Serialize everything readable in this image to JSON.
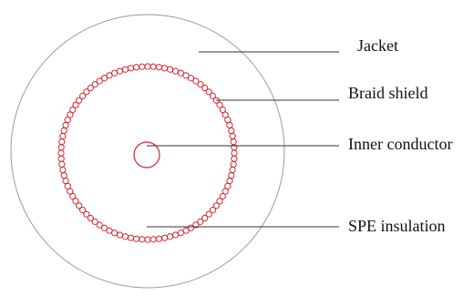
{
  "diagram": {
    "labels": {
      "jacket": "Jacket",
      "braid_shield": "Braid shield",
      "inner_conductor": "Inner conductor",
      "spe_insulation": "SPE insulation"
    },
    "colors": {
      "jacket_outline": "#9a9a9a",
      "braid": "#d4282f",
      "conductor": "#d4282f",
      "leader_lines": "#333333",
      "text": "#111111"
    }
  }
}
